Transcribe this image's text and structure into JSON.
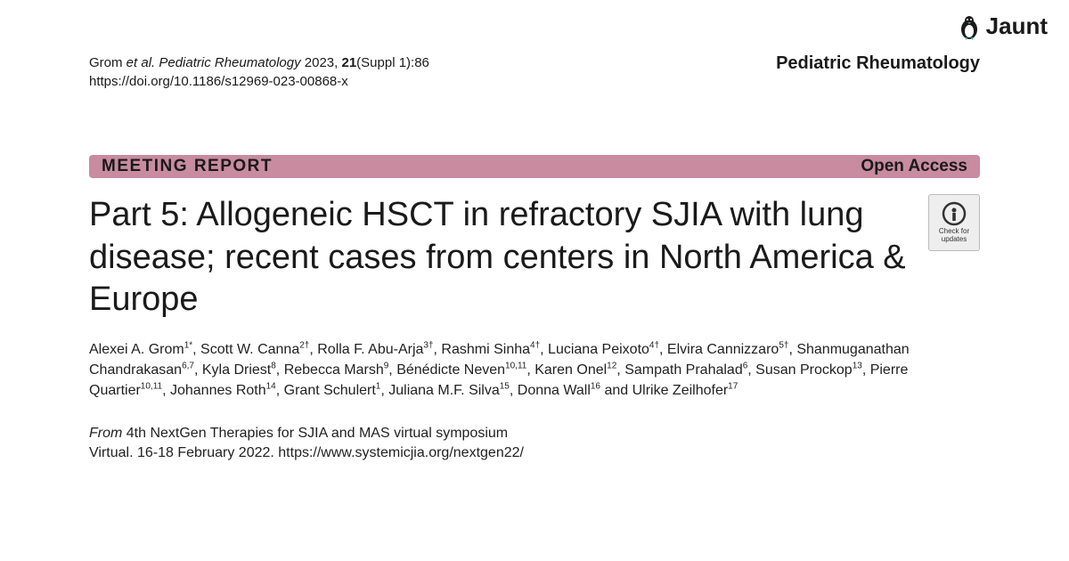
{
  "brand": {
    "name": "Jaunt",
    "icon_color": "#2bb5a0"
  },
  "citation": {
    "prefix": "Grom ",
    "etal": "et al. Pediatric Rheumatology",
    "year": " 2023, ",
    "volume": "21",
    "issue": "(Suppl 1):86",
    "doi": "https://doi.org/10.1186/s12969-023-00868-x"
  },
  "journal": "Pediatric Rheumatology",
  "banner": {
    "left": "MEETING REPORT",
    "right": "Open Access",
    "bg_color": "#c88ba0"
  },
  "check_updates": {
    "line1": "Check for",
    "line2": "updates"
  },
  "title": "Part 5: Allogeneic HSCT in refractory SJIA with lung disease; recent cases from centers in North America & Europe",
  "authors_html": "Alexei A. Grom<sup>1*</sup>, Scott W. Canna<sup>2†</sup>, Rolla F. Abu-Arja<sup>3†</sup>, Rashmi Sinha<sup>4†</sup>, Luciana Peixoto<sup>4†</sup>, Elvira Cannizzaro<sup>5†</sup>, Shanmuganathan Chandrakasan<sup>6,7</sup>, Kyla Driest<sup>8</sup>, Rebecca Marsh<sup>9</sup>, Bénédicte Neven<sup>10,11</sup>, Karen Onel<sup>12</sup>, Sampath Prahalad<sup>6</sup>, Susan Prockop<sup>13</sup>, Pierre Quartier<sup>10,11</sup>, Johannes Roth<sup>14</sup>, Grant Schulert<sup>1</sup>, Juliana M.F. Silva<sup>15</sup>, Donna Wall<sup>16</sup> and Ulrike Zeilhofer<sup>17</sup>",
  "conference": {
    "from_label": "From",
    "name": " 4th NextGen Therapies for SJIA and MAS virtual symposium",
    "details": "Virtual. 16-18 February 2022. https://www.systemicjia.org/nextgen22/"
  }
}
